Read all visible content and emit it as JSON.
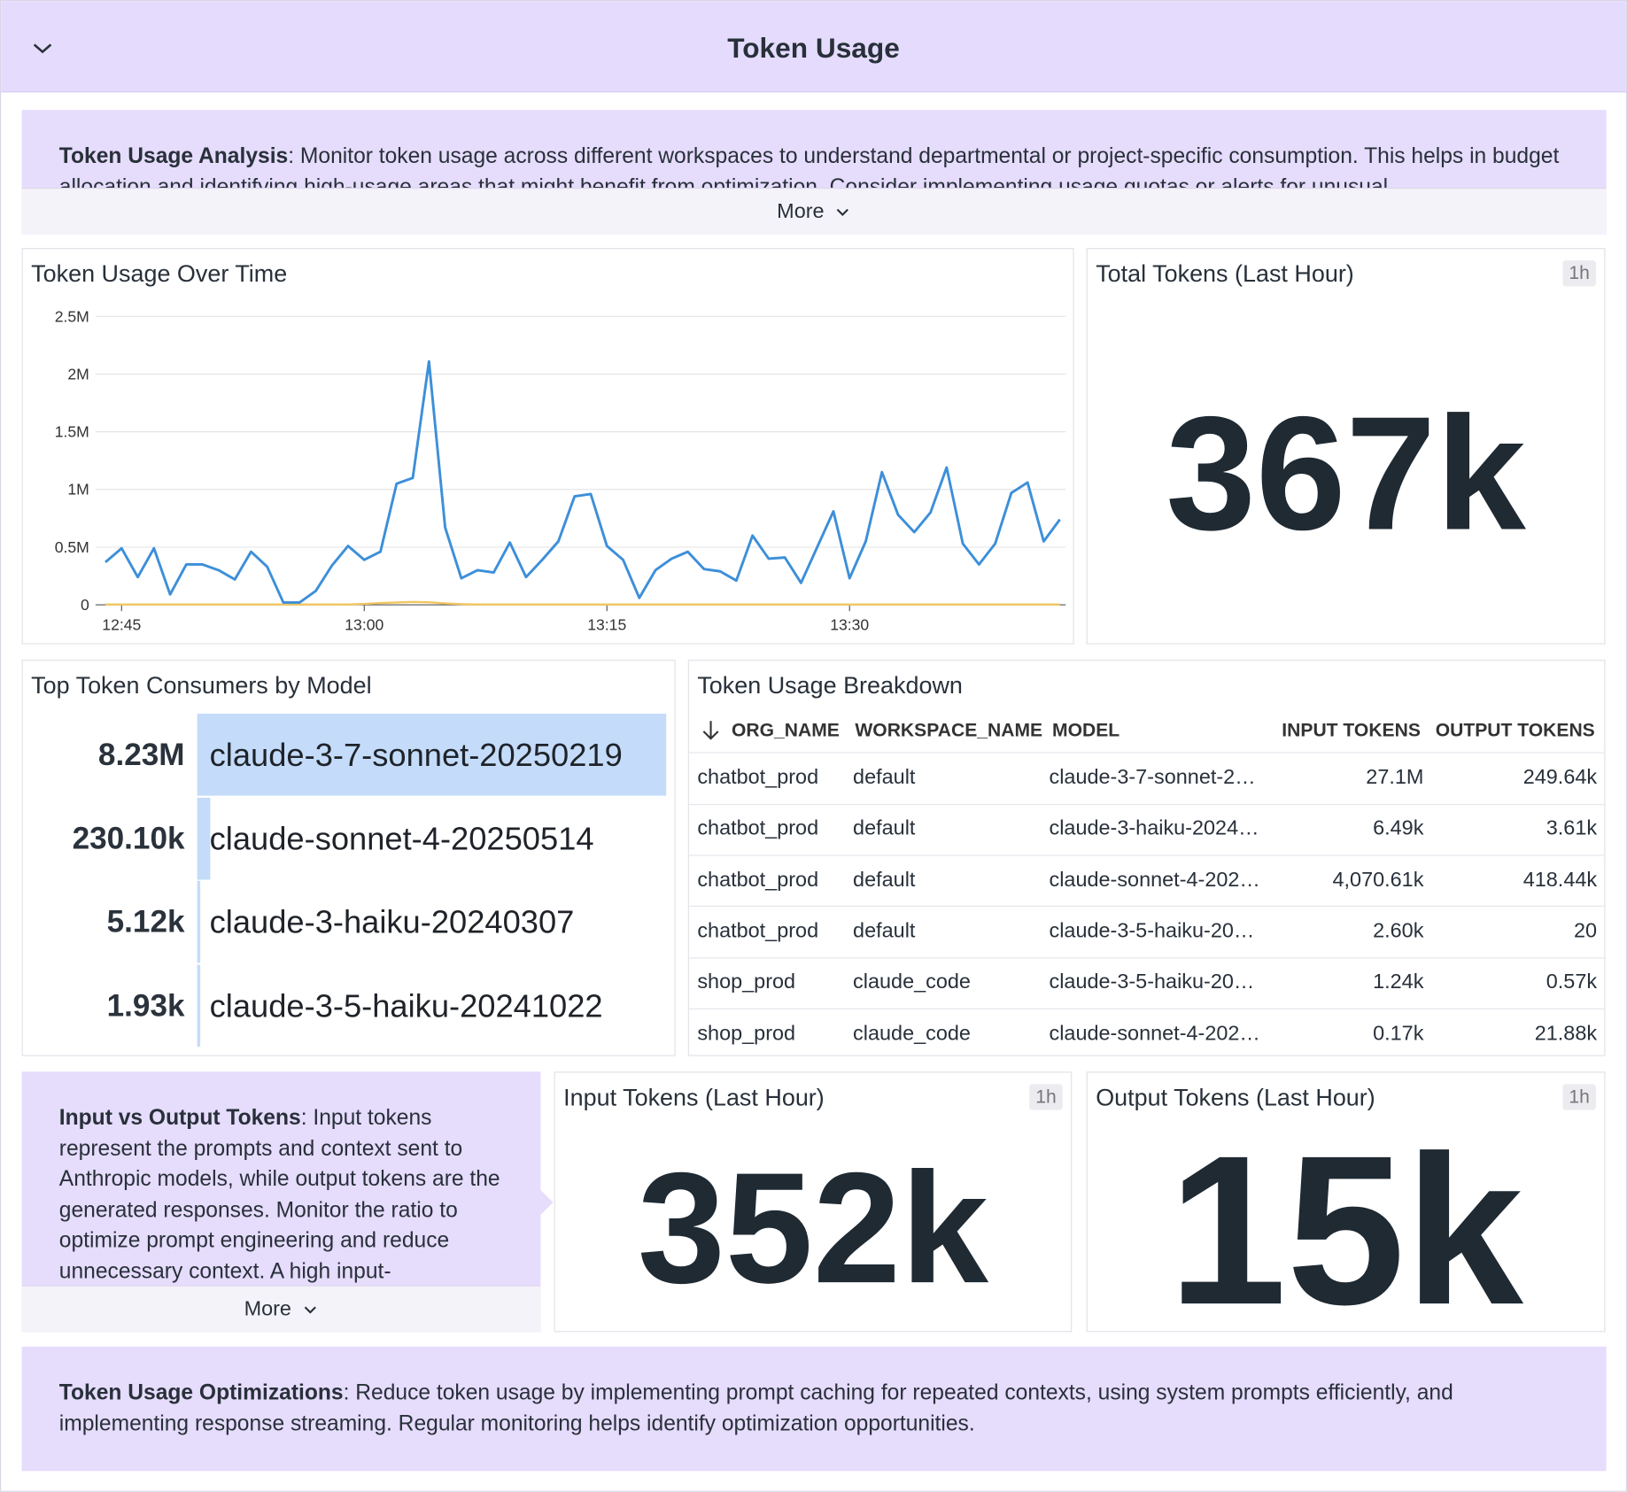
{
  "header": {
    "title": "Token Usage"
  },
  "notes": [
    {
      "label": "Token Usage Analysis",
      "text": ": Monitor token usage across different workspaces to understand departmental or project-specific consumption. This helps in budget allocation and identifying high-usage areas that might benefit from optimization. Consider implementing usage quotas or alerts for unusual",
      "more": "More"
    },
    {
      "label": "Input vs Output Tokens",
      "text": ": Input tokens represent the prompts and context sent to Anthropic models, while output tokens are the generated responses. Monitor the ratio to optimize prompt engineering and reduce unnecessary context. A high input-",
      "more": "More"
    },
    {
      "label": "Token Usage Optimizations",
      "text": ": Reduce token usage by implementing prompt caching for repeated contexts, using system prompts efficiently, and implementing response streaming. Regular monitoring helps identify optimization opportunities."
    }
  ],
  "chart_data": [
    {
      "type": "line",
      "title": "Token Usage Over Time",
      "x": [
        "12:44",
        "12:45",
        "12:46",
        "12:47",
        "12:48",
        "12:49",
        "12:50",
        "12:51",
        "12:52",
        "12:53",
        "12:54",
        "12:55",
        "12:56",
        "12:57",
        "12:58",
        "12:59",
        "13:00",
        "13:01",
        "13:02",
        "13:03",
        "13:04",
        "13:05",
        "13:06",
        "13:07",
        "13:08",
        "13:09",
        "13:10",
        "13:11",
        "13:12",
        "13:13",
        "13:14",
        "13:15",
        "13:16",
        "13:17",
        "13:18",
        "13:19",
        "13:20",
        "13:21",
        "13:22",
        "13:23",
        "13:24",
        "13:25",
        "13:26",
        "13:27",
        "13:28",
        "13:29",
        "13:30",
        "13:31",
        "13:32",
        "13:33",
        "13:34",
        "13:35",
        "13:36",
        "13:37",
        "13:38",
        "13:39",
        "13:40",
        "13:41",
        "13:42",
        "13:43"
      ],
      "xlim": [
        "12:43",
        "13:44"
      ],
      "xticks": [
        "12:45",
        "13:00",
        "13:15",
        "13:30"
      ],
      "ylim": [
        0,
        2500000
      ],
      "yticks": [
        0,
        {
          "value": 500000,
          "label": "0.5M"
        },
        {
          "value": 1000000,
          "label": "1M"
        },
        {
          "value": 1500000,
          "label": "1.5M"
        },
        {
          "value": 2000000,
          "label": "2M"
        },
        {
          "value": 2500000,
          "label": "2.5M"
        }
      ],
      "grid": true,
      "series": [
        {
          "color": "#3d8fd9",
          "values": [
            370000,
            490000,
            240000,
            490000,
            90000,
            350000,
            350000,
            300000,
            220000,
            460000,
            330000,
            20000,
            20000,
            120000,
            340000,
            510000,
            390000,
            460000,
            1050000,
            1100000,
            2110000,
            670000,
            230000,
            300000,
            280000,
            540000,
            240000,
            390000,
            550000,
            940000,
            960000,
            510000,
            390000,
            60000,
            300000,
            400000,
            460000,
            310000,
            290000,
            210000,
            600000,
            400000,
            410000,
            190000,
            500000,
            810000,
            230000,
            550000,
            1150000,
            780000,
            630000,
            800000,
            1190000,
            530000,
            350000,
            530000,
            970000,
            1060000,
            550000,
            740000
          ]
        },
        {
          "color": "#f2c661",
          "values": [
            3000,
            3000,
            3000,
            3000,
            3000,
            3000,
            3000,
            3000,
            3000,
            3000,
            3000,
            3000,
            3000,
            3000,
            3000,
            3000,
            8000,
            15000,
            20000,
            25000,
            22000,
            12000,
            6000,
            3000,
            3000,
            3000,
            3000,
            3000,
            3000,
            3000,
            3000,
            3000,
            3000,
            3000,
            3000,
            3000,
            3000,
            3000,
            3000,
            3000,
            3000,
            3000,
            3000,
            3000,
            3000,
            3000,
            3000,
            3000,
            3000,
            3000,
            3000,
            3000,
            3000,
            3000,
            3000,
            3000,
            3000,
            3000,
            3000,
            3000
          ]
        }
      ]
    },
    {
      "type": "bar",
      "title": "Top Token Consumers by Model",
      "categories": [
        "claude-3-7-sonnet-20250219",
        "claude-sonnet-4-20250514",
        "claude-3-haiku-20240307",
        "claude-3-5-haiku-20241022"
      ],
      "values": [
        8230000,
        230100,
        5120,
        1930
      ],
      "value_labels": [
        "8.23M",
        "230.10k",
        "5.12k",
        "1.93k"
      ],
      "xlim": [
        0,
        8230000
      ],
      "color": "#c4dcfa"
    }
  ],
  "query_values": [
    {
      "title": "Total Tokens (Last Hour)",
      "badge": "1h",
      "value": "367k"
    },
    {
      "title": "Input Tokens (Last Hour)",
      "badge": "1h",
      "value": "352k"
    },
    {
      "title": "Output Tokens (Last Hour)",
      "badge": "1h",
      "value": "15k"
    }
  ],
  "table": {
    "title": "Token Usage Breakdown",
    "columns": [
      "ORG_NAME",
      "WORKSPACE_NAME",
      "MODEL",
      "INPUT TOKENS",
      "OUTPUT TOKENS"
    ],
    "rows": [
      [
        "chatbot_prod",
        "default",
        "claude-3-7-sonnet-2…",
        "27.1M",
        "249.64k"
      ],
      [
        "chatbot_prod",
        "default",
        "claude-3-haiku-2024…",
        "6.49k",
        "3.61k"
      ],
      [
        "chatbot_prod",
        "default",
        "claude-sonnet-4-202…",
        "4,070.61k",
        "418.44k"
      ],
      [
        "chatbot_prod",
        "default",
        "claude-3-5-haiku-20…",
        "2.60k",
        "20"
      ],
      [
        "shop_prod",
        "claude_code",
        "claude-3-5-haiku-20…",
        "1.24k",
        "0.57k"
      ],
      [
        "shop_prod",
        "claude_code",
        "claude-sonnet-4-202…",
        "0.17k",
        "21.88k"
      ]
    ]
  }
}
